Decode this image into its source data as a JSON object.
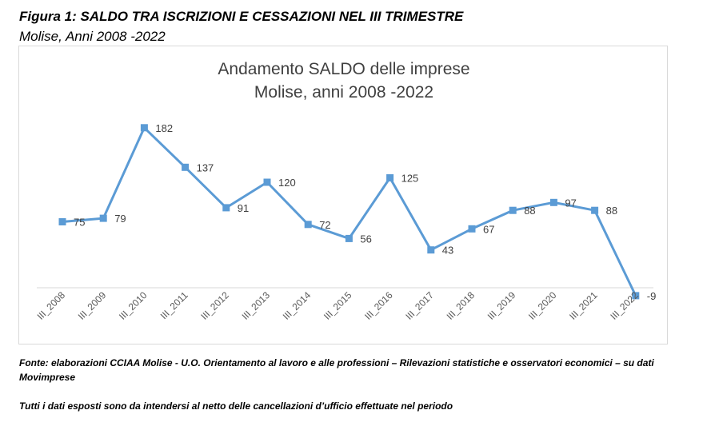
{
  "figure": {
    "title": "Figura 1: SALDO TRA ISCRIZIONI E CESSAZIONI NEL III TRIMESTRE",
    "subtitle": "Molise, Anni 2008 -2022"
  },
  "chart_data": {
    "type": "line",
    "title_line1": "Andamento SALDO delle imprese",
    "title_line2": "Molise, anni 2008 -2022",
    "categories": [
      "III_2008",
      "III_2009",
      "III_2010",
      "III_2011",
      "III_2012",
      "III_2013",
      "III_2014",
      "III_2015",
      "III_2016",
      "III_2017",
      "III_2018",
      "III_2019",
      "III_2020",
      "III_2021",
      "III_2022"
    ],
    "values": [
      75,
      79,
      182,
      137,
      91,
      120,
      72,
      56,
      125,
      43,
      67,
      88,
      97,
      88,
      -9
    ],
    "ylim": [
      -15,
      200
    ],
    "grid": false,
    "color": "#5b9bd5"
  },
  "footer": {
    "source": "Fonte: elaborazioni CCIAA Molise - U.O. Orientamento al lavoro e alle professioni – Rilevazioni statistiche e osservatori economici – su dati Movimprese",
    "note": "Tutti i dati esposti sono da intendersi al netto delle cancellazioni d’ufficio effettuate nel periodo"
  }
}
